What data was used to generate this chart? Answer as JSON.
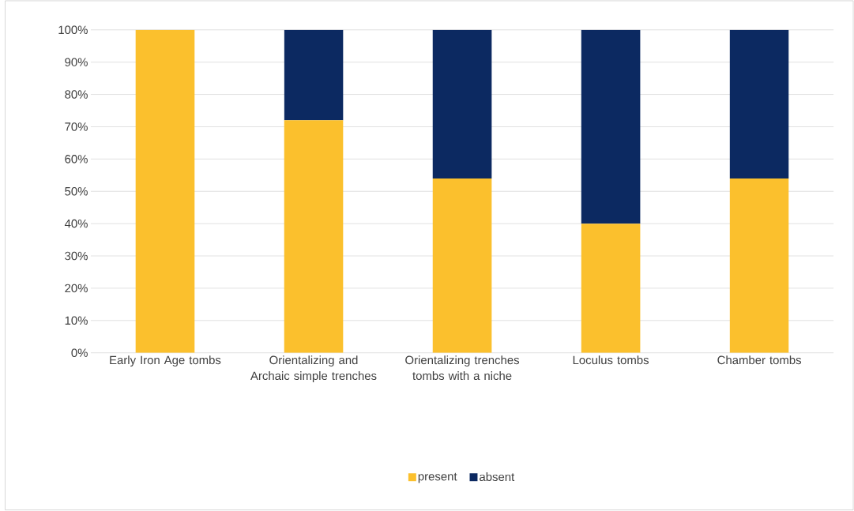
{
  "chart_data": {
    "type": "bar",
    "stacked": true,
    "categories": [
      "Early Iron Age tombs",
      "Orientalizing and Archaic simple trenches",
      "Orientalizing trenches tombs with a niche",
      "Loculus tombs",
      "Chamber tombs"
    ],
    "series": [
      {
        "name": "present",
        "color": "#fbc02d",
        "values": [
          100,
          72,
          54,
          40,
          54
        ]
      },
      {
        "name": "absent",
        "color": "#0c2961",
        "values": [
          0,
          28,
          46,
          60,
          46
        ]
      }
    ],
    "ylim": [
      0,
      100
    ],
    "yticks": [
      {
        "value": 0,
        "label": "0%"
      },
      {
        "value": 10,
        "label": "10%"
      },
      {
        "value": 20,
        "label": "20%"
      },
      {
        "value": 30,
        "label": "30%"
      },
      {
        "value": 40,
        "label": "40%"
      },
      {
        "value": 50,
        "label": "50%"
      },
      {
        "value": 60,
        "label": "60%"
      },
      {
        "value": 70,
        "label": "70%"
      },
      {
        "value": 80,
        "label": "80%"
      },
      {
        "value": 90,
        "label": "90%"
      },
      {
        "value": 100,
        "label": "100%"
      }
    ],
    "grid": "y",
    "legend": "bottom"
  }
}
